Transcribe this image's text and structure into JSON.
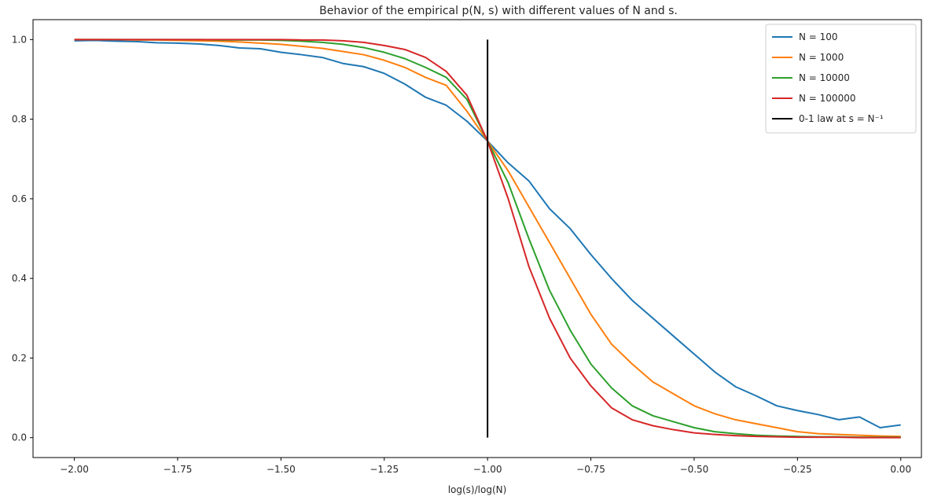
{
  "chart_data": {
    "type": "line",
    "title": "Behavior of the empirical p(N, s) with different values of N and s.",
    "xlabel": "log(s)/log(N)",
    "ylabel": "",
    "xlim": [
      -2.1,
      0.05
    ],
    "ylim": [
      -0.05,
      1.05
    ],
    "xticks": [
      -2.0,
      -1.75,
      -1.5,
      -1.25,
      -1.0,
      -0.75,
      -0.5,
      -0.25,
      0.0
    ],
    "xtick_labels": [
      "−2.00",
      "−1.75",
      "−1.50",
      "−1.25",
      "−1.00",
      "−0.75",
      "−0.50",
      "−0.25",
      "0.00"
    ],
    "yticks": [
      0.0,
      0.2,
      0.4,
      0.6,
      0.8,
      1.0
    ],
    "ytick_labels": [
      "0.0",
      "0.2",
      "0.4",
      "0.6",
      "0.8",
      "1.0"
    ],
    "grid": false,
    "legend_position": "top-right",
    "series": [
      {
        "name": "N = 100",
        "color": "#1f77b4",
        "x": [
          -2.0,
          -1.95,
          -1.9,
          -1.85,
          -1.8,
          -1.75,
          -1.7,
          -1.65,
          -1.6,
          -1.55,
          -1.5,
          -1.45,
          -1.4,
          -1.35,
          -1.3,
          -1.25,
          -1.2,
          -1.15,
          -1.1,
          -1.05,
          -1.0,
          -0.95,
          -0.9,
          -0.85,
          -0.8,
          -0.75,
          -0.7,
          -0.65,
          -0.6,
          -0.55,
          -0.5,
          -0.45,
          -0.4,
          -0.35,
          -0.3,
          -0.25,
          -0.2,
          -0.15,
          -0.1,
          -0.05,
          0.0
        ],
        "y": [
          0.997,
          0.998,
          0.996,
          0.995,
          0.992,
          0.991,
          0.989,
          0.985,
          0.979,
          0.977,
          0.968,
          0.962,
          0.955,
          0.94,
          0.932,
          0.915,
          0.888,
          0.855,
          0.835,
          0.795,
          0.745,
          0.69,
          0.645,
          0.575,
          0.525,
          0.46,
          0.4,
          0.345,
          0.3,
          0.255,
          0.21,
          0.165,
          0.128,
          0.105,
          0.08,
          0.068,
          0.058,
          0.045,
          0.052,
          0.025,
          0.032
        ]
      },
      {
        "name": "N = 1000",
        "color": "#ff7f0e",
        "x": [
          -2.0,
          -1.95,
          -1.9,
          -1.85,
          -1.8,
          -1.75,
          -1.7,
          -1.65,
          -1.6,
          -1.55,
          -1.5,
          -1.45,
          -1.4,
          -1.35,
          -1.3,
          -1.25,
          -1.2,
          -1.15,
          -1.1,
          -1.05,
          -1.0,
          -0.95,
          -0.9,
          -0.85,
          -0.8,
          -0.75,
          -0.7,
          -0.65,
          -0.6,
          -0.55,
          -0.5,
          -0.45,
          -0.4,
          -0.35,
          -0.3,
          -0.25,
          -0.2,
          -0.15,
          -0.1,
          -0.05,
          0.0
        ],
        "y": [
          1.0,
          1.0,
          1.0,
          0.999,
          0.999,
          0.998,
          0.997,
          0.996,
          0.994,
          0.991,
          0.988,
          0.983,
          0.978,
          0.97,
          0.962,
          0.948,
          0.93,
          0.905,
          0.885,
          0.82,
          0.745,
          0.67,
          0.58,
          0.49,
          0.4,
          0.31,
          0.235,
          0.185,
          0.14,
          0.11,
          0.08,
          0.06,
          0.045,
          0.035,
          0.025,
          0.015,
          0.01,
          0.008,
          0.006,
          0.004,
          0.003
        ]
      },
      {
        "name": "N = 10000",
        "color": "#2ca02c",
        "x": [
          -2.0,
          -1.95,
          -1.9,
          -1.85,
          -1.8,
          -1.75,
          -1.7,
          -1.65,
          -1.6,
          -1.55,
          -1.5,
          -1.45,
          -1.4,
          -1.35,
          -1.3,
          -1.25,
          -1.2,
          -1.15,
          -1.1,
          -1.05,
          -1.0,
          -0.95,
          -0.9,
          -0.85,
          -0.8,
          -0.75,
          -0.7,
          -0.65,
          -0.6,
          -0.55,
          -0.5,
          -0.45,
          -0.4,
          -0.35,
          -0.3,
          -0.25,
          -0.2,
          -0.15,
          -0.1,
          -0.05,
          0.0
        ],
        "y": [
          1.0,
          1.0,
          1.0,
          1.0,
          1.0,
          1.0,
          1.0,
          0.999,
          0.999,
          0.999,
          0.998,
          0.996,
          0.993,
          0.988,
          0.98,
          0.968,
          0.952,
          0.93,
          0.905,
          0.85,
          0.745,
          0.64,
          0.5,
          0.37,
          0.27,
          0.185,
          0.125,
          0.08,
          0.055,
          0.04,
          0.025,
          0.015,
          0.01,
          0.006,
          0.004,
          0.003,
          0.002,
          0.002,
          0.001,
          0.001,
          0.001
        ]
      },
      {
        "name": "N = 100000",
        "color": "#d62728",
        "x": [
          -2.0,
          -1.95,
          -1.9,
          -1.85,
          -1.8,
          -1.75,
          -1.7,
          -1.65,
          -1.6,
          -1.55,
          -1.5,
          -1.45,
          -1.4,
          -1.35,
          -1.3,
          -1.25,
          -1.2,
          -1.15,
          -1.1,
          -1.05,
          -1.0,
          -0.95,
          -0.9,
          -0.85,
          -0.8,
          -0.75,
          -0.7,
          -0.65,
          -0.6,
          -0.55,
          -0.5,
          -0.45,
          -0.4,
          -0.35,
          -0.3,
          -0.25,
          -0.2,
          -0.15,
          -0.1,
          -0.05,
          0.0
        ],
        "y": [
          1.0,
          1.0,
          1.0,
          1.0,
          1.0,
          1.0,
          1.0,
          1.0,
          1.0,
          1.0,
          1.0,
          0.999,
          0.999,
          0.997,
          0.993,
          0.985,
          0.975,
          0.955,
          0.92,
          0.86,
          0.745,
          0.6,
          0.43,
          0.3,
          0.2,
          0.13,
          0.075,
          0.045,
          0.03,
          0.02,
          0.012,
          0.008,
          0.005,
          0.003,
          0.002,
          0.001,
          0.001,
          0.001,
          0.0,
          0.0,
          0.0
        ]
      }
    ],
    "vertical_line": {
      "name": "0-1 law at s = N⁻¹",
      "color": "#000000",
      "x": -1.0,
      "y": [
        0.0,
        1.0
      ]
    }
  }
}
